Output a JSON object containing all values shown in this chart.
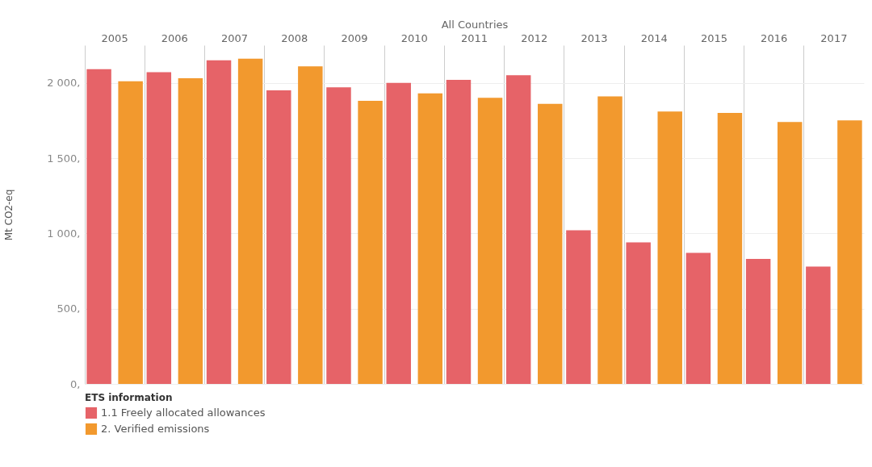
{
  "chart_data": {
    "type": "bar",
    "xlabel": "All Countries",
    "ylabel": "Mt CO2-eq",
    "legend_title": "ETS information",
    "categories": [
      "2005",
      "2006",
      "2007",
      "2008",
      "2009",
      "2010",
      "2011",
      "2012",
      "2013",
      "2014",
      "2015",
      "2016",
      "2017"
    ],
    "series": [
      {
        "name": "1.1 Freely allocated allowances",
        "color": "#e66368",
        "values": [
          2090,
          2070,
          2150,
          1950,
          1970,
          2000,
          2020,
          2050,
          1020,
          940,
          870,
          830,
          780
        ]
      },
      {
        "name": "2. Verified emissions",
        "color": "#f2992e",
        "values": [
          2010,
          2030,
          2160,
          2110,
          1880,
          1930,
          1900,
          1860,
          1910,
          1810,
          1800,
          1740,
          1750
        ]
      }
    ],
    "ylim": [
      0,
      2250
    ],
    "yticks": [
      {
        "value": 0,
        "label": "0,"
      },
      {
        "value": 500,
        "label": "500,"
      },
      {
        "value": 1000,
        "label": "1 000,"
      },
      {
        "value": 1500,
        "label": "1 500,"
      },
      {
        "value": 2000,
        "label": "2 000,"
      }
    ],
    "grid": true,
    "legend": "bottom left"
  }
}
